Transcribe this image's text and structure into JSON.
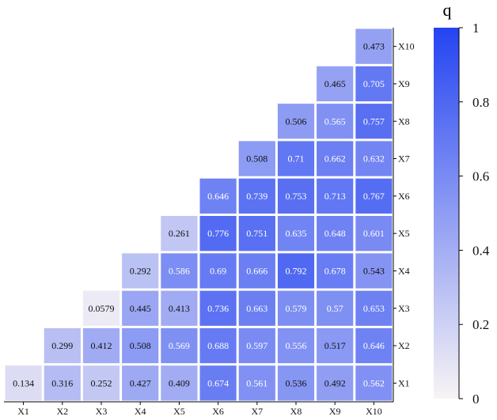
{
  "chart_data": {
    "type": "heatmap",
    "x_labels": [
      "X1",
      "X2",
      "X3",
      "X4",
      "X5",
      "X6",
      "X7",
      "X8",
      "X9",
      "X10"
    ],
    "y_labels": [
      "X1",
      "X2",
      "X3",
      "X4",
      "X5",
      "X6",
      "X7",
      "X8",
      "X9",
      "X10"
    ],
    "rows": [
      {
        "y": "X1",
        "values": [
          0.134,
          0.316,
          0.252,
          0.427,
          0.409,
          0.674,
          0.561,
          0.536,
          0.492,
          0.562
        ]
      },
      {
        "y": "X2",
        "values": [
          null,
          0.299,
          0.412,
          0.508,
          0.569,
          0.688,
          0.597,
          0.556,
          0.517,
          0.646
        ]
      },
      {
        "y": "X3",
        "values": [
          null,
          null,
          0.0579,
          0.445,
          0.413,
          0.736,
          0.663,
          0.579,
          0.57,
          0.653
        ]
      },
      {
        "y": "X4",
        "values": [
          null,
          null,
          null,
          0.292,
          0.586,
          0.69,
          0.666,
          0.792,
          0.678,
          0.543
        ]
      },
      {
        "y": "X5",
        "values": [
          null,
          null,
          null,
          null,
          0.261,
          0.776,
          0.751,
          0.635,
          0.648,
          0.601
        ]
      },
      {
        "y": "X6",
        "values": [
          null,
          null,
          null,
          null,
          null,
          0.646,
          0.739,
          0.753,
          0.713,
          0.767
        ]
      },
      {
        "y": "X7",
        "values": [
          null,
          null,
          null,
          null,
          null,
          null,
          0.508,
          0.71,
          0.662,
          0.632
        ]
      },
      {
        "y": "X8",
        "values": [
          null,
          null,
          null,
          null,
          null,
          null,
          null,
          0.506,
          0.565,
          0.757
        ]
      },
      {
        "y": "X9",
        "values": [
          null,
          null,
          null,
          null,
          null,
          null,
          null,
          null,
          0.465,
          0.705
        ]
      },
      {
        "y": "X10",
        "values": [
          null,
          null,
          null,
          null,
          null,
          null,
          null,
          null,
          null,
          0.473
        ]
      }
    ],
    "colorbar": {
      "title": "q",
      "range": [
        0,
        1
      ],
      "ticks": [
        "0",
        "0.2",
        "0.4",
        "0.6",
        "0.8",
        "1"
      ],
      "color_low": "#f8f4f4",
      "color_high": "#2444f2"
    },
    "y_axis_side": "right",
    "layout": "upper-triangular"
  }
}
